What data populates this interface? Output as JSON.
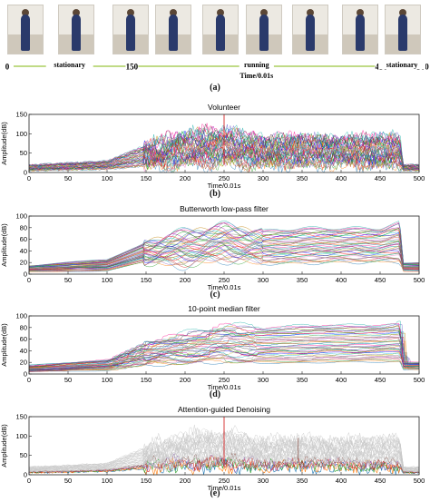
{
  "timeline": {
    "ticks": [
      {
        "label": "0",
        "t": 0
      },
      {
        "label": "150",
        "t": 150
      },
      {
        "label": "450",
        "t": 450
      },
      {
        "label": "500",
        "t": 500
      }
    ],
    "segments": [
      {
        "label": "stationary",
        "start": 0,
        "end": 150
      },
      {
        "label": "running",
        "start": 150,
        "end": 450
      },
      {
        "label": "stationary",
        "start": 450,
        "end": 500
      }
    ],
    "axis_label": "Time/0.01s",
    "caption": "(a)"
  },
  "chart_data": [
    {
      "type": "line",
      "title": "Volunteer",
      "xlabel": "Time/0.01s",
      "ylabel": "Amplitude(dB)",
      "xlim": [
        0,
        500
      ],
      "ylim": [
        0,
        150
      ],
      "xticks": [
        0,
        50,
        100,
        150,
        200,
        250,
        300,
        350,
        400,
        450,
        500
      ],
      "yticks": [
        0,
        50,
        100,
        150
      ],
      "grid": false,
      "caption": "(b)",
      "style": "raw",
      "series_count": 40,
      "envelope": {
        "x": [
          0,
          100,
          148,
          200,
          250,
          300,
          350,
          400,
          450,
          475,
          480,
          500
        ],
        "low": [
          5,
          8,
          15,
          20,
          20,
          18,
          18,
          18,
          15,
          15,
          5,
          5
        ],
        "high": [
          20,
          30,
          70,
          100,
          110,
          90,
          95,
          90,
          95,
          95,
          20,
          20
        ]
      },
      "spike": {
        "x": 250,
        "y": 150
      }
    },
    {
      "type": "line",
      "title": "Butterworth low-pass filter",
      "xlabel": "Time/0.01s",
      "ylabel": "Amplitude(dB)",
      "xlim": [
        0,
        500
      ],
      "ylim": [
        0,
        100
      ],
      "xticks": [
        0,
        50,
        100,
        150,
        200,
        250,
        300,
        350,
        400,
        450,
        500
      ],
      "yticks": [
        0,
        20,
        40,
        60,
        80,
        100
      ],
      "grid": false,
      "caption": "(c)",
      "style": "smooth",
      "series_count": 40,
      "envelope": {
        "x": [
          0,
          100,
          148,
          200,
          250,
          300,
          350,
          400,
          450,
          475,
          480,
          500
        ],
        "low": [
          4,
          6,
          20,
          15,
          25,
          18,
          18,
          20,
          20,
          20,
          5,
          5
        ],
        "high": [
          15,
          25,
          55,
          75,
          85,
          75,
          80,
          80,
          80,
          90,
          20,
          20
        ]
      }
    },
    {
      "type": "line",
      "title": "10-point median filter",
      "xlabel": "Time/0.01s",
      "ylabel": "Amplitude(dB)",
      "xlim": [
        0,
        500
      ],
      "ylim": [
        0,
        100
      ],
      "xticks": [
        0,
        50,
        100,
        150,
        200,
        250,
        300,
        350,
        400,
        450,
        500
      ],
      "yticks": [
        0,
        20,
        40,
        60,
        80,
        100
      ],
      "grid": false,
      "caption": "(d)",
      "style": "median",
      "series_count": 40,
      "envelope": {
        "x": [
          0,
          100,
          148,
          200,
          250,
          300,
          350,
          400,
          450,
          475,
          480,
          500
        ],
        "low": [
          4,
          6,
          15,
          18,
          20,
          18,
          18,
          20,
          20,
          20,
          8,
          8
        ],
        "high": [
          15,
          25,
          55,
          70,
          85,
          80,
          85,
          85,
          85,
          90,
          20,
          20
        ]
      }
    },
    {
      "type": "line",
      "title": "Attention-guided Denoising",
      "xlabel": "Time/0.01s",
      "ylabel": "Amplitude(dB)",
      "xlim": [
        0,
        500
      ],
      "ylim": [
        0,
        150
      ],
      "xticks": [
        0,
        50,
        100,
        150,
        200,
        250,
        300,
        350,
        400,
        450,
        500
      ],
      "yticks": [
        0,
        50,
        100,
        150
      ],
      "grid": false,
      "caption": "(e)",
      "style": "attention",
      "series_count": 30,
      "highlighted_count": 6,
      "envelope": {
        "x": [
          0,
          100,
          148,
          200,
          250,
          300,
          350,
          400,
          450,
          475,
          480,
          500
        ],
        "low": [
          5,
          8,
          15,
          20,
          20,
          18,
          18,
          18,
          15,
          15,
          5,
          5
        ],
        "high": [
          20,
          30,
          70,
          100,
          110,
          90,
          95,
          90,
          95,
          95,
          20,
          20
        ]
      },
      "spike": {
        "x": 250,
        "y": 150
      }
    }
  ]
}
